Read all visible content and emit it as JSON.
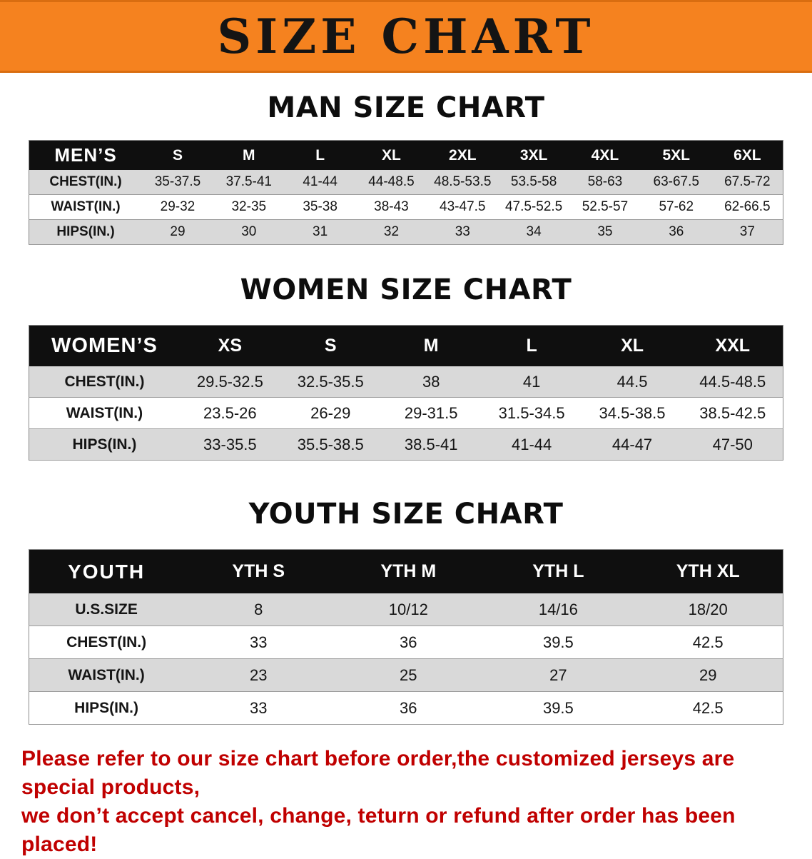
{
  "banner": {
    "title": "SIZE CHART"
  },
  "chart_data": [
    {
      "type": "table",
      "title": "MAN SIZE CHART",
      "header_label": "MEN’S",
      "columns": [
        "S",
        "M",
        "L",
        "XL",
        "2XL",
        "3XL",
        "4XL",
        "5XL",
        "6XL"
      ],
      "rows": [
        {
          "label": "CHEST(IN.)",
          "values": [
            "35-37.5",
            "37.5-41",
            "41-44",
            "44-48.5",
            "48.5-53.5",
            "53.5-58",
            "58-63",
            "63-67.5",
            "67.5-72"
          ]
        },
        {
          "label": "WAIST(IN.)",
          "values": [
            "29-32",
            "32-35",
            "35-38",
            "38-43",
            "43-47.5",
            "47.5-52.5",
            "52.5-57",
            "57-62",
            "62-66.5"
          ]
        },
        {
          "label": "HIPS(IN.)",
          "values": [
            "29",
            "30",
            "31",
            "32",
            "33",
            "34",
            "35",
            "36",
            "37"
          ]
        }
      ]
    },
    {
      "type": "table",
      "title": "WOMEN SIZE CHART",
      "header_label": "WOMEN’S",
      "columns": [
        "XS",
        "S",
        "M",
        "L",
        "XL",
        "XXL"
      ],
      "rows": [
        {
          "label": "CHEST(IN.)",
          "values": [
            "29.5-32.5",
            "32.5-35.5",
            "38",
            "41",
            "44.5",
            "44.5-48.5"
          ]
        },
        {
          "label": "WAIST(IN.)",
          "values": [
            "23.5-26",
            "26-29",
            "29-31.5",
            "31.5-34.5",
            "34.5-38.5",
            "38.5-42.5"
          ]
        },
        {
          "label": "HIPS(IN.)",
          "values": [
            "33-35.5",
            "35.5-38.5",
            "38.5-41",
            "41-44",
            "44-47",
            "47-50"
          ]
        }
      ]
    },
    {
      "type": "table",
      "title": "YOUTH SIZE CHART",
      "header_label": "YOUTH",
      "columns": [
        "YTH S",
        "YTH M",
        "YTH L",
        "YTH XL"
      ],
      "rows": [
        {
          "label": "U.S.SIZE",
          "values": [
            "8",
            "10/12",
            "14/16",
            "18/20"
          ]
        },
        {
          "label": "CHEST(IN.)",
          "values": [
            "33",
            "36",
            "39.5",
            "42.5"
          ]
        },
        {
          "label": "WAIST(IN.)",
          "values": [
            "23",
            "25",
            "27",
            "29"
          ]
        },
        {
          "label": "HIPS(IN.)",
          "values": [
            "33",
            "36",
            "39.5",
            "42.5"
          ]
        }
      ]
    }
  ],
  "disclaimer": {
    "line1": "Please refer to our size chart before order,the customized jerseys are special products,",
    "line2": "we don’t accept cancel, change, teturn or refund after order has been placed!"
  },
  "colors": {
    "banner_bg": "#f5821f",
    "table_header_bg": "#0f0f0f",
    "row_shade": "#d9d9d9",
    "disclaimer_text": "#c00000"
  }
}
